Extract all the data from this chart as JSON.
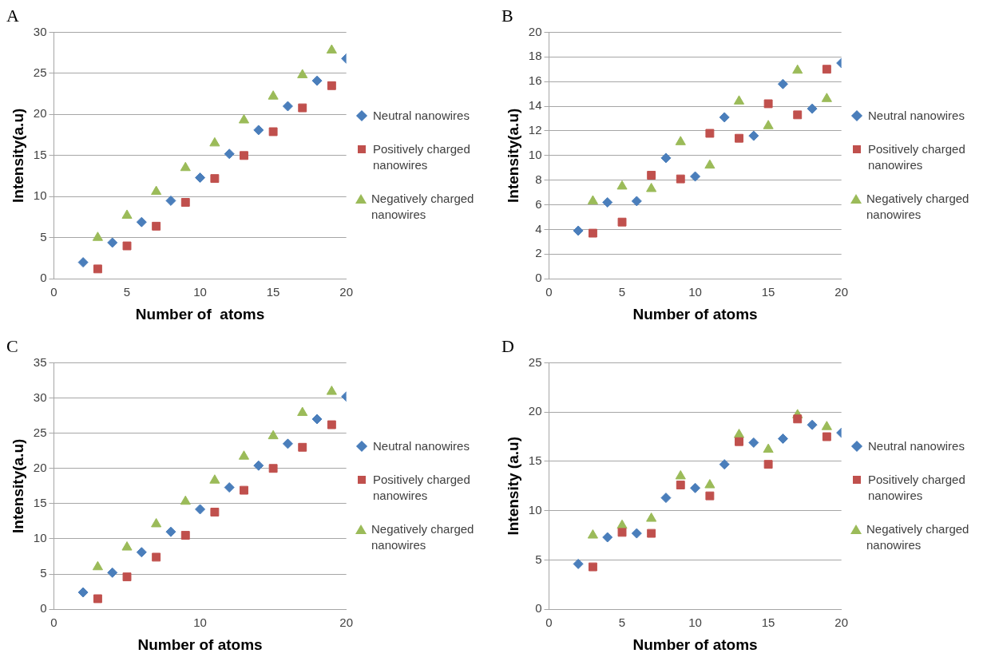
{
  "chart_data": [
    {
      "type": "scatter",
      "title": "A",
      "xlabel": "Number of  atoms",
      "ylabel": "Intensity(a.u)",
      "xlim": [
        0,
        20
      ],
      "xticks": [
        0,
        5,
        10,
        15,
        20
      ],
      "ylim": [
        0,
        30
      ],
      "yticks": [
        0,
        5,
        10,
        15,
        20,
        25,
        30
      ],
      "grid": "y",
      "legend": "right",
      "series": [
        {
          "name": "Neutral nanowires",
          "color": "#4a7ebb",
          "marker": "diamond",
          "x": [
            2,
            4,
            6,
            8,
            10,
            12,
            14,
            16,
            18,
            20
          ],
          "values": [
            2.0,
            4.4,
            6.9,
            9.5,
            12.3,
            15.2,
            18.1,
            21.0,
            24.1,
            26.8
          ]
        },
        {
          "name": "Positively charged nanowires",
          "color": "#c0504d",
          "marker": "square",
          "x": [
            3,
            5,
            7,
            9,
            11,
            13,
            15,
            17,
            19
          ],
          "values": [
            1.2,
            4.0,
            6.4,
            9.3,
            12.2,
            15.0,
            17.9,
            20.8,
            23.5
          ]
        },
        {
          "name": "Negatively charged nanowires",
          "color": "#9bbb59",
          "marker": "triangle",
          "x": [
            3,
            5,
            7,
            9,
            11,
            13,
            15,
            17,
            19
          ],
          "values": [
            5.0,
            7.7,
            10.6,
            13.5,
            16.5,
            19.3,
            22.2,
            24.8,
            27.8
          ]
        }
      ]
    },
    {
      "type": "scatter",
      "title": "B",
      "xlabel": "Number of atoms",
      "ylabel": "Intensity(a.u)",
      "xlim": [
        0,
        20
      ],
      "xticks": [
        0,
        5,
        10,
        15,
        20
      ],
      "ylim": [
        0,
        20
      ],
      "yticks": [
        0,
        2,
        4,
        6,
        8,
        10,
        12,
        14,
        16,
        18,
        20
      ],
      "grid": "y",
      "legend": "right",
      "series": [
        {
          "name": "Neutral nanowires",
          "color": "#4a7ebb",
          "marker": "diamond",
          "x": [
            2,
            4,
            6,
            8,
            10,
            12,
            14,
            16,
            18,
            20
          ],
          "values": [
            3.9,
            6.2,
            6.3,
            9.8,
            8.3,
            13.1,
            11.6,
            15.8,
            13.8,
            17.5
          ]
        },
        {
          "name": "Positively charged nanowires",
          "color": "#c0504d",
          "marker": "square",
          "x": [
            3,
            5,
            7,
            9,
            11,
            13,
            15,
            17,
            19
          ],
          "values": [
            3.7,
            4.6,
            8.4,
            8.1,
            11.8,
            11.4,
            14.2,
            13.3,
            17.0
          ]
        },
        {
          "name": "Negatively charged nanowires",
          "color": "#9bbb59",
          "marker": "triangle",
          "x": [
            3,
            5,
            7,
            9,
            11,
            13,
            15,
            17,
            19
          ],
          "values": [
            6.3,
            7.5,
            7.3,
            11.1,
            9.2,
            14.4,
            12.4,
            16.9,
            14.6
          ]
        }
      ]
    },
    {
      "type": "scatter",
      "title": "C",
      "xlabel": "Number of atoms",
      "ylabel": "Intensity(a.u)",
      "xlim": [
        0,
        20
      ],
      "xticks": [
        0,
        10,
        20
      ],
      "ylim": [
        0,
        35
      ],
      "yticks": [
        0,
        5,
        10,
        15,
        20,
        25,
        30,
        35
      ],
      "grid": "y",
      "legend": "right",
      "series": [
        {
          "name": "Neutral nanowires",
          "color": "#4a7ebb",
          "marker": "diamond",
          "x": [
            2,
            4,
            6,
            8,
            10,
            12,
            14,
            16,
            18,
            20
          ],
          "values": [
            2.4,
            5.2,
            8.1,
            11.0,
            14.2,
            17.3,
            20.4,
            23.5,
            27.0,
            30.2
          ]
        },
        {
          "name": "Positively charged nanowires",
          "color": "#c0504d",
          "marker": "square",
          "x": [
            3,
            5,
            7,
            9,
            11,
            13,
            15,
            17,
            19
          ],
          "values": [
            1.5,
            4.6,
            7.4,
            10.5,
            13.8,
            16.9,
            20.0,
            23.0,
            26.2
          ]
        },
        {
          "name": "Negatively charged nanowires",
          "color": "#9bbb59",
          "marker": "triangle",
          "x": [
            3,
            5,
            7,
            9,
            11,
            13,
            15,
            17,
            19
          ],
          "values": [
            6.0,
            8.8,
            12.1,
            15.3,
            18.3,
            21.7,
            24.6,
            27.9,
            30.9
          ]
        }
      ]
    },
    {
      "type": "scatter",
      "title": "D",
      "xlabel": "Number of atoms",
      "ylabel": "Intensity (a.u)",
      "xlim": [
        0,
        20
      ],
      "xticks": [
        0,
        5,
        10,
        15,
        20
      ],
      "ylim": [
        0,
        25
      ],
      "yticks": [
        0,
        5,
        10,
        15,
        20,
        25
      ],
      "grid": "y",
      "legend": "right",
      "series": [
        {
          "name": "Neutral nanowires",
          "color": "#4a7ebb",
          "marker": "diamond",
          "x": [
            2,
            4,
            6,
            8,
            10,
            12,
            14,
            16,
            18,
            20
          ],
          "values": [
            4.6,
            7.3,
            7.7,
            11.3,
            12.3,
            14.7,
            16.9,
            17.3,
            18.7,
            17.9
          ]
        },
        {
          "name": "Positively charged nanowires",
          "color": "#c0504d",
          "marker": "square",
          "x": [
            3,
            5,
            7,
            9,
            11,
            13,
            15,
            17,
            19
          ],
          "values": [
            4.3,
            7.8,
            7.7,
            12.6,
            11.5,
            17.0,
            14.7,
            19.3,
            17.5
          ]
        },
        {
          "name": "Negatively charged nanowires",
          "color": "#9bbb59",
          "marker": "triangle",
          "x": [
            3,
            5,
            7,
            9,
            11,
            13,
            15,
            17,
            19
          ],
          "values": [
            7.5,
            8.5,
            9.2,
            13.5,
            12.6,
            17.7,
            16.2,
            19.7,
            18.5
          ]
        }
      ]
    }
  ]
}
